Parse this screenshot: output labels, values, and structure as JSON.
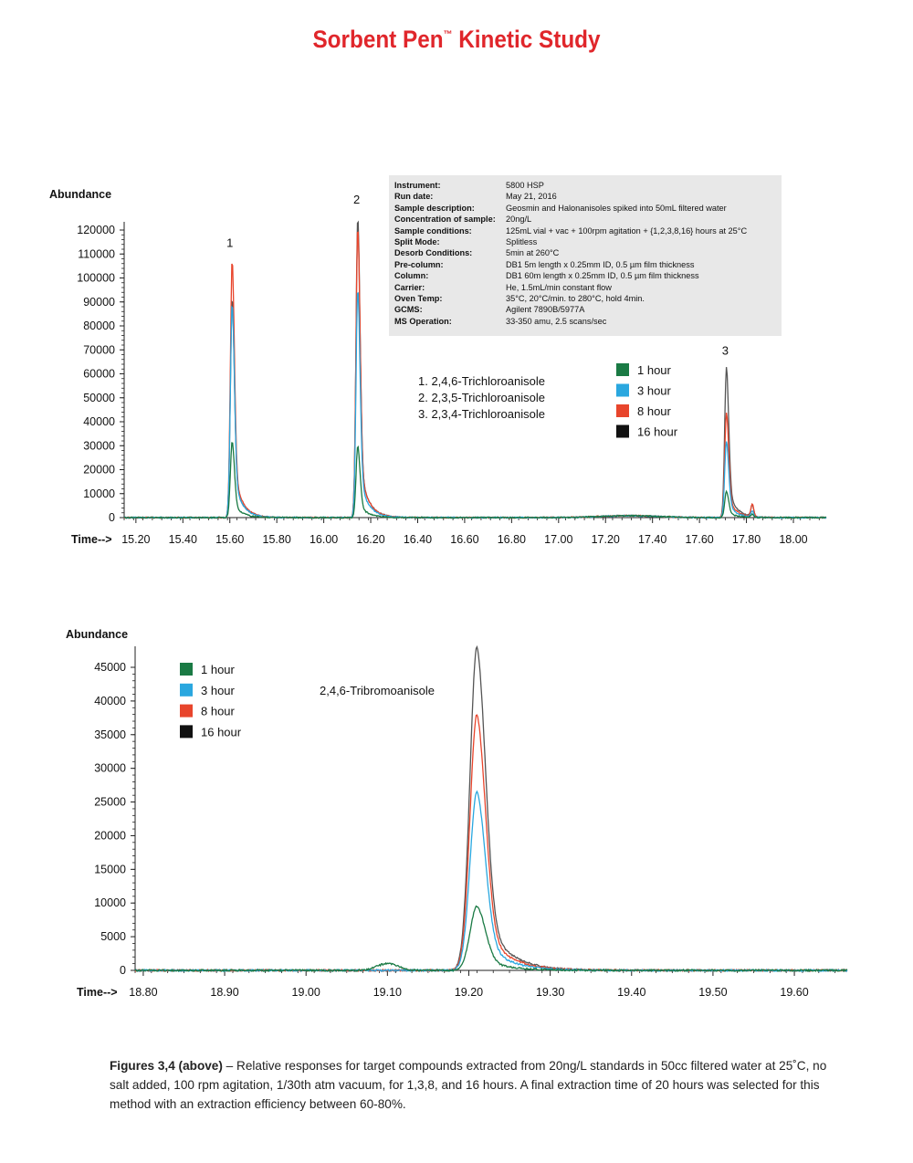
{
  "page_title": "Sorbent Pen",
  "page_title_tm": "™",
  "page_title_suffix": " Kinetic Study",
  "colors": {
    "title": "#e0262b",
    "1 hour": "#1a7a44",
    "3 hour": "#2aa7df",
    "8 hour": "#e8452c",
    "16 hour": "#555555"
  },
  "info_box": [
    {
      "k": "Instrument:",
      "v": "5800 HSP"
    },
    {
      "k": "Run date:",
      "v": "May 21, 2016"
    },
    {
      "k": "Sample description:",
      "v": "Geosmin and Halonanisoles spiked into 50mL filtered water"
    },
    {
      "k": "Concentration of sample:",
      "v": "20ng/L"
    },
    {
      "k": "Sample conditions:",
      "v": "125mL vial + vac  + 100rpm agitation + {1,2,3,8,16} hours at 25°C"
    },
    {
      "k": "Split Mode:",
      "v": "Splitless"
    },
    {
      "k": "Desorb Conditions:",
      "v": "5min at 260°C"
    },
    {
      "k": "Pre-column:",
      "v": "DB1 5m length x 0.25mm ID, 0.5 µm film thickness"
    },
    {
      "k": "Column:",
      "v": "DB1 60m length x 0.25mm ID, 0.5 µm film thickness"
    },
    {
      "k": "Carrier:",
      "v": "He, 1.5mL/min constant flow"
    },
    {
      "k": "Oven Temp:",
      "v": "35°C, 20°C/min. to 280°C, hold 4min."
    },
    {
      "k": "GCMS:",
      "v": "Agilent 7890B/5977A"
    },
    {
      "k": "MS Operation:",
      "v": "33-350 amu, 2.5 scans/sec"
    }
  ],
  "chart_data": [
    {
      "type": "line",
      "title": "",
      "ylabel": "Abundance",
      "xlabel": "Time-->",
      "xlim": [
        15.15,
        18.14
      ],
      "ylim": [
        0,
        120000
      ],
      "xticks": [
        "15.20",
        "15.40",
        "15.60",
        "15.80",
        "16.00",
        "16.20",
        "16.40",
        "16.60",
        "16.80",
        "17.00",
        "17.20",
        "17.40",
        "17.60",
        "17.80",
        "18.00"
      ],
      "yticks": [
        "0",
        "10000",
        "20000",
        "30000",
        "40000",
        "50000",
        "60000",
        "70000",
        "80000",
        "90000",
        "100000",
        "110000",
        "120000"
      ],
      "peak_labels": [
        {
          "text": "1",
          "x": 15.6,
          "y": 113000
        },
        {
          "text": "2",
          "x": 16.14,
          "y": 131000
        },
        {
          "text": "3",
          "x": 17.71,
          "y": 68000
        }
      ],
      "compounds": [
        "1.   2,4,6-Trichloroanisole",
        "2.   2,3,5-Trichloroanisole",
        "3.   2,3,4-Trichloroanisole"
      ],
      "legend": [
        "1 hour",
        "3 hour",
        "8 hour",
        "16 hour"
      ],
      "peaks": {
        "positions": [
          15.61,
          16.145,
          17.715
        ],
        "secondary": {
          "x": 17.825,
          "heights": {
            "1 hour": 1200,
            "3 hour": 2500,
            "8 hour": 5500,
            "16 hour": 5000
          }
        }
      },
      "series": [
        {
          "name": "1 hour",
          "peak_heights": [
            32000,
            30000,
            11000
          ]
        },
        {
          "name": "3 hour",
          "peak_heights": [
            90000,
            96000,
            32000
          ]
        },
        {
          "name": "8 hour",
          "peak_heights": [
            108000,
            122000,
            44000
          ]
        },
        {
          "name": "16 hour",
          "peak_heights": [
            92000,
            126000,
            63000
          ]
        }
      ]
    },
    {
      "type": "line",
      "title": "2,4,6-Tribromoanisole",
      "ylabel": "Abundance",
      "xlabel": "Time-->",
      "xlim": [
        18.79,
        19.665
      ],
      "ylim": [
        0,
        45000
      ],
      "xticks": [
        "18.80",
        "18.90",
        "19.00",
        "19.10",
        "19.20",
        "19.30",
        "19.40",
        "19.50",
        "19.60"
      ],
      "yticks": [
        "0",
        "5000",
        "10000",
        "15000",
        "20000",
        "25000",
        "30000",
        "35000",
        "40000",
        "45000"
      ],
      "legend": [
        "1 hour",
        "3 hour",
        "8 hour",
        "16 hour"
      ],
      "peaks": {
        "positions": [
          19.21
        ],
        "minor": {
          "x": 19.1,
          "height": 1000
        }
      },
      "series": [
        {
          "name": "1 hour",
          "peak_heights": [
            9500
          ]
        },
        {
          "name": "3 hour",
          "peak_heights": [
            26500
          ]
        },
        {
          "name": "8 hour",
          "peak_heights": [
            38000
          ]
        },
        {
          "name": "16 hour",
          "peak_heights": [
            48000
          ]
        }
      ]
    }
  ],
  "caption_bold": "Figures 3,4 (above)",
  "caption_text": " – Relative responses for target compounds extracted from 20ng/L standards in 50cc filtered water at 25˚C, no salt added, 100 rpm agitation, 1/30th atm vacuum, for 1,3,8, and 16 hours. A final extraction time of 20 hours was selected for this method with an extraction efficiency between 60-80%."
}
